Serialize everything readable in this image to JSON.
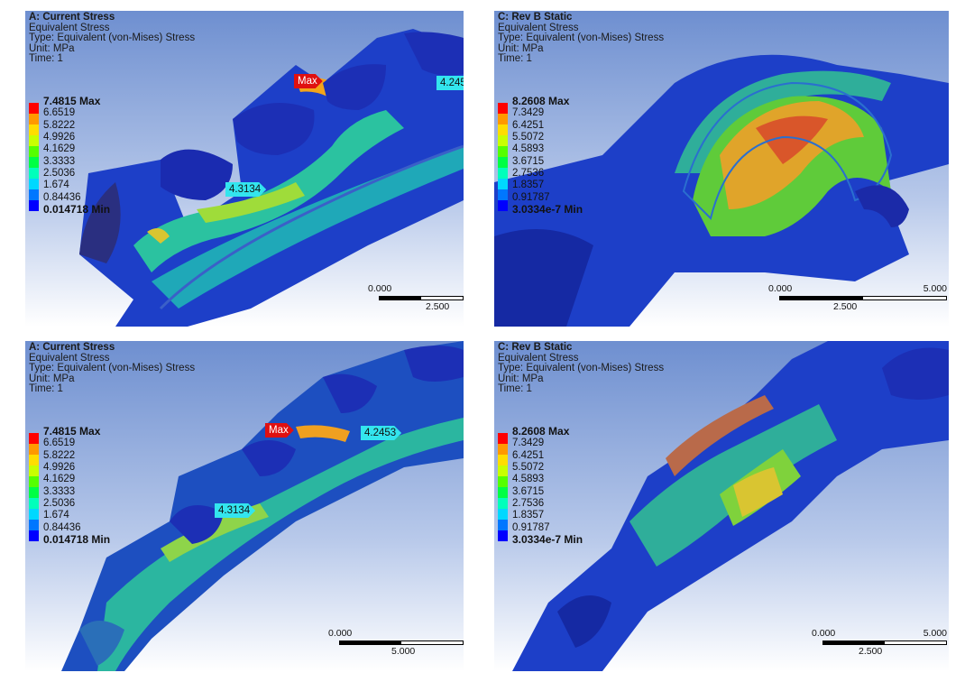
{
  "panels": [
    {
      "title": "A: Current Stress",
      "lines": [
        "Equivalent Stress",
        "Type: Equivalent (von-Mises) Stress",
        "Unit: MPa",
        "Time: 1"
      ],
      "legend": [
        "7.4815 Max",
        "6.6519",
        "5.8222",
        "4.9926",
        "4.1629",
        "3.3333",
        "2.5036",
        "1.674",
        "0.84436",
        "0.014718 Min"
      ],
      "probes": {
        "max": "Max",
        "p1": "4.3134",
        "p2": "4.245"
      },
      "scale": {
        "left": "0.000",
        "mid": "2.500"
      }
    },
    {
      "title": "C: Rev B Static",
      "lines": [
        "Equivalent Stress",
        "Type: Equivalent (von-Mises) Stress",
        "Unit: MPa",
        "Time: 1"
      ],
      "legend": [
        "8.2608 Max",
        "7.3429",
        "6.4251",
        "5.5072",
        "4.5893",
        "3.6715",
        "2.7536",
        "1.8357",
        "0.91787",
        "3.0334e-7 Min"
      ],
      "scale": {
        "left": "0.000",
        "mid": "2.500",
        "right": "5.000"
      }
    },
    {
      "title": "A: Current Stress",
      "lines": [
        "Equivalent Stress",
        "Type: Equivalent (von-Mises) Stress",
        "Unit: MPa",
        "Time: 1"
      ],
      "legend": [
        "7.4815 Max",
        "6.6519",
        "5.8222",
        "4.9926",
        "4.1629",
        "3.3333",
        "2.5036",
        "1.674",
        "0.84436",
        "0.014718 Min"
      ],
      "probes": {
        "max": "Max",
        "p1": "4.3134",
        "p2": "4.2453"
      },
      "scale": {
        "left": "0.000",
        "mid": "5.000"
      }
    },
    {
      "title": "C: Rev B Static",
      "lines": [
        "Equivalent Stress",
        "Type: Equivalent (von-Mises) Stress",
        "Unit: MPa",
        "Time: 1"
      ],
      "legend": [
        "8.2608 Max",
        "7.3429",
        "6.4251",
        "5.5072",
        "4.5893",
        "3.6715",
        "2.7536",
        "1.8357",
        "0.91787",
        "3.0334e-7 Min"
      ],
      "scale": {
        "left": "0.000",
        "mid": "2.500",
        "right": "5.000"
      }
    }
  ],
  "legend_colors": [
    "#ff0000",
    "#ff9900",
    "#ffdd00",
    "#c8ff00",
    "#55ff00",
    "#00ff44",
    "#00ffbb",
    "#00d8ff",
    "#0077ff",
    "#0000ff"
  ]
}
